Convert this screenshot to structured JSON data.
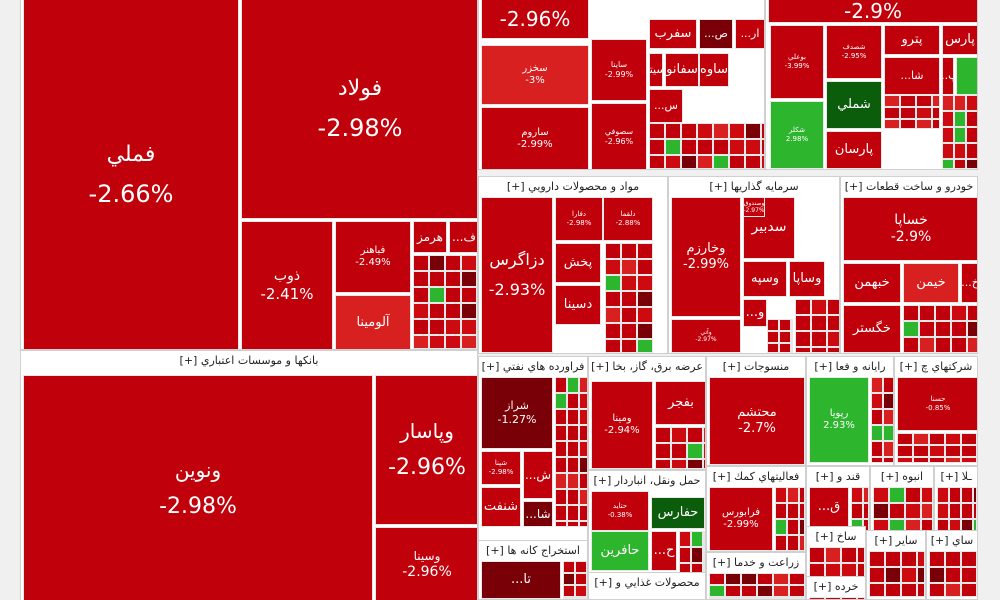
{
  "colors": {
    "deep": "#c0000a",
    "mid": "#cc0a10",
    "light": "#d92020",
    "darkred": "#7a0008",
    "green": "#2db52d",
    "darkgreen": "#0b5c0b",
    "bg": "#f0f0f0"
  },
  "sectors": [
    {
      "id": "metals",
      "title": "",
      "tiles": [
        {
          "symbol": "فملي",
          "change": "-2.66%",
          "color": "deep"
        },
        {
          "symbol": "فولاد",
          "change": "-2.98%",
          "color": "deep"
        },
        {
          "symbol": "ذوب",
          "change": "-2.41%",
          "color": "deep"
        },
        {
          "symbol": "فباهنر",
          "change": "-2.49%",
          "color": "deep"
        },
        {
          "symbol": "آلومينا",
          "change": "",
          "color": "light"
        },
        {
          "symbol": "هرمز",
          "change": "",
          "color": "deep"
        },
        {
          "symbol": "ف...",
          "change": "",
          "color": "deep"
        }
      ]
    },
    {
      "id": "top-mid",
      "title": "",
      "tiles": [
        {
          "symbol": "",
          "change": "-2.96%",
          "color": "deep"
        },
        {
          "symbol": "سخزر",
          "change": "-3%",
          "color": "light"
        },
        {
          "symbol": "ساروم",
          "change": "-2.99%",
          "color": "deep"
        },
        {
          "symbol": "ساينا",
          "change": "-2.99%",
          "color": "deep"
        },
        {
          "symbol": "سصوفي",
          "change": "-2.96%",
          "color": "deep"
        },
        {
          "symbol": "سفرب",
          "change": "",
          "color": "deep"
        },
        {
          "symbol": "ص...",
          "change": "",
          "color": "darkred"
        },
        {
          "symbol": "ار...",
          "change": "",
          "color": "deep"
        },
        {
          "symbol": "ساوه",
          "change": "",
          "color": "deep"
        },
        {
          "symbol": "سفانو",
          "change": "",
          "color": "deep"
        },
        {
          "symbol": "سيتا",
          "change": "",
          "color": "deep"
        },
        {
          "symbol": "س...",
          "change": "",
          "color": "deep"
        }
      ]
    },
    {
      "id": "top-right",
      "title": "",
      "tiles": [
        {
          "symbol": "",
          "change": "-2.9%",
          "color": "deep"
        },
        {
          "symbol": "بوعلي",
          "change": "-3.99%",
          "color": "deep"
        },
        {
          "symbol": "شصدف",
          "change": "-2.95%",
          "color": "deep"
        },
        {
          "symbol": "پارس",
          "change": "",
          "color": "deep"
        },
        {
          "symbol": "پترو",
          "change": "",
          "color": "deep"
        },
        {
          "symbol": "پ...",
          "change": "",
          "color": "deep"
        },
        {
          "symbol": "شا...",
          "change": "",
          "color": "deep"
        },
        {
          "symbol": "شملي",
          "change": "",
          "color": "darkgreen"
        },
        {
          "symbol": "شكلر",
          "change": "2.98%",
          "color": "green"
        },
        {
          "symbol": "پارسان",
          "change": "",
          "color": "deep"
        }
      ]
    },
    {
      "id": "banks",
      "title": "بانکها و موسسات اعتباري [+]",
      "tiles": [
        {
          "symbol": "ونوين",
          "change": "-2.98%",
          "color": "deep"
        },
        {
          "symbol": "وپاسار",
          "change": "-2.96%",
          "color": "deep"
        },
        {
          "symbol": "وسينا",
          "change": "-2.96%",
          "color": "deep"
        }
      ]
    },
    {
      "id": "pharma",
      "title": "مواد و محصولات دارويي [+]",
      "tiles": [
        {
          "symbol": "دزاگرس",
          "change": "-2.93%",
          "color": "deep"
        },
        {
          "symbol": "پخش",
          "change": "",
          "color": "deep"
        },
        {
          "symbol": "دسينا",
          "change": "",
          "color": "deep"
        },
        {
          "symbol": "دفارا",
          "change": "-2.98%",
          "color": "deep"
        },
        {
          "symbol": "دلقما",
          "change": "-2.88%",
          "color": "deep"
        }
      ]
    },
    {
      "id": "investment",
      "title": "سرمايه گذاريها [+]",
      "tiles": [
        {
          "symbol": "وخارزم",
          "change": "-2.99%",
          "color": "deep"
        },
        {
          "symbol": "سدبير",
          "change": "",
          "color": "deep"
        },
        {
          "symbol": "وساپا",
          "change": "",
          "color": "deep"
        },
        {
          "symbol": "وسپه",
          "change": "",
          "color": "deep"
        },
        {
          "symbol": "و...",
          "change": "",
          "color": "deep"
        },
        {
          "symbol": "وصندوق",
          "change": "-2.97%",
          "color": "deep"
        },
        {
          "symbol": "وآتي",
          "change": "-2.97%",
          "color": "deep"
        }
      ]
    },
    {
      "id": "auto",
      "title": "خودرو و ساخت قطعات [+]",
      "tiles": [
        {
          "symbol": "خساپا",
          "change": "-2.9%",
          "color": "deep"
        },
        {
          "symbol": "خبهمن",
          "change": "",
          "color": "deep"
        },
        {
          "symbol": "خيمن",
          "change": "",
          "color": "light"
        },
        {
          "symbol": "خگستر",
          "change": "",
          "color": "deep"
        },
        {
          "symbol": "خ...",
          "change": "",
          "color": "deep"
        }
      ]
    },
    {
      "id": "refinery",
      "title": "فراورده هاي نفتي [+]",
      "tiles": [
        {
          "symbol": "شراز",
          "change": "-1.27%",
          "color": "darkred"
        },
        {
          "symbol": "شپنا",
          "change": "-2.98%",
          "color": "deep"
        },
        {
          "symbol": "ش...",
          "change": "",
          "color": "deep"
        },
        {
          "symbol": "شنفت",
          "change": "",
          "color": "deep"
        },
        {
          "symbol": "شا...",
          "change": "",
          "color": "darkred"
        }
      ]
    },
    {
      "id": "utilities",
      "title": "عرضه برق، گاز، بخا [+]",
      "tiles": [
        {
          "symbol": "بفجر",
          "change": "",
          "color": "deep"
        },
        {
          "symbol": "ومينا",
          "change": "-2.94%",
          "color": "deep"
        }
      ]
    },
    {
      "id": "textile",
      "title": "منسوجات [+]",
      "tiles": [
        {
          "symbol": "محتشم",
          "change": "-2.7%",
          "color": "deep"
        }
      ]
    },
    {
      "id": "it",
      "title": "رايانه و فعا [+]",
      "tiles": [
        {
          "symbol": "رپويا",
          "change": "2.93%",
          "color": "green"
        }
      ]
    },
    {
      "id": "chemical-co",
      "title": "شرکتهاي چ [+]",
      "tiles": [
        {
          "symbol": "حسنا",
          "change": "-0.85%",
          "color": "deep"
        }
      ]
    },
    {
      "id": "transport",
      "title": "حمل ونقل، انباردار [+]",
      "tiles": [
        {
          "symbol": "حفارس",
          "change": "",
          "color": "darkgreen"
        },
        {
          "symbol": "حافرين",
          "change": "",
          "color": "green"
        },
        {
          "symbol": "ح...",
          "change": "",
          "color": "deep"
        },
        {
          "symbol": "حتاید",
          "change": "-0.38%",
          "color": "deep"
        }
      ]
    },
    {
      "id": "services",
      "title": "فعاليتهاي کمك [+]",
      "tiles": [
        {
          "symbol": "فرابورس",
          "change": "-2.99%",
          "color": "deep"
        }
      ]
    },
    {
      "id": "sugar",
      "title": "قند و [+]",
      "tiles": [
        {
          "symbol": "ق...",
          "change": "",
          "color": "deep"
        }
      ]
    },
    {
      "id": "mass",
      "title": "انبوه [+]",
      "tiles": []
    },
    {
      "id": "tile-ceramic",
      "title": "ـلا [+]",
      "tiles": []
    },
    {
      "id": "mining",
      "title": "استخراج کانه ها [+]",
      "tiles": [
        {
          "symbol": "تا...",
          "change": "",
          "color": "darkred"
        }
      ]
    },
    {
      "id": "agri",
      "title": "زراعت و خدما [+]",
      "tiles": []
    },
    {
      "id": "nonmetal",
      "title": "ساخ [+]",
      "tiles": []
    },
    {
      "id": "other",
      "title": "ساير [+]",
      "tiles": []
    },
    {
      "id": "misc",
      "title": "ساي [+]",
      "tiles": []
    },
    {
      "id": "food",
      "title": "محصولات غذايي و [+]",
      "tiles": []
    },
    {
      "id": "retail",
      "title": "خرده [+]",
      "tiles": []
    }
  ]
}
